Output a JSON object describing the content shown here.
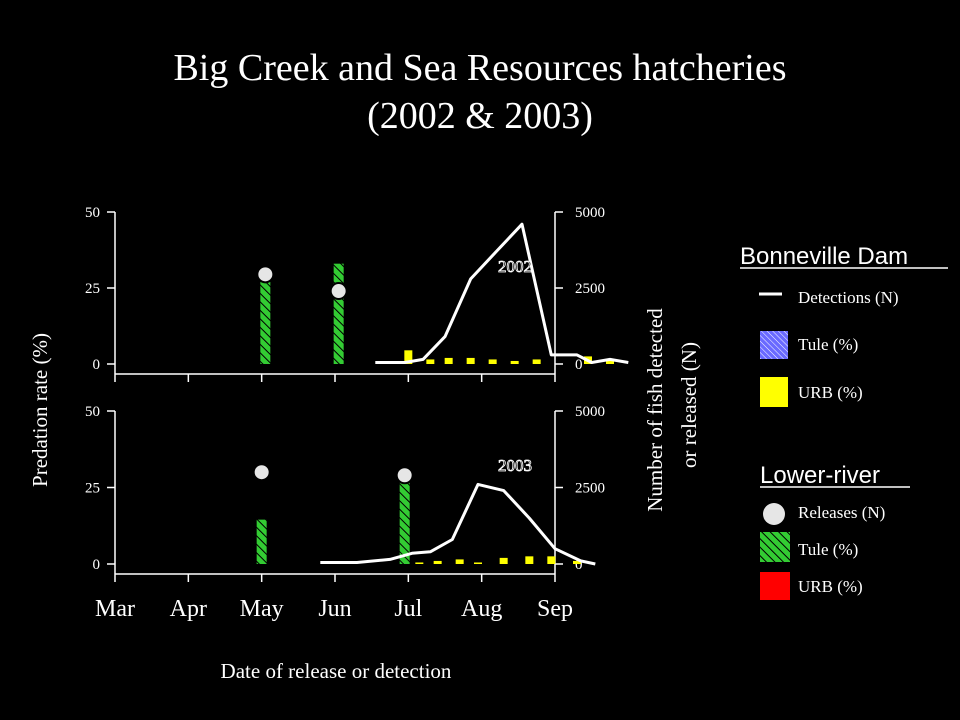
{
  "title_line1": "Big Creek and Sea Resources hatcheries",
  "title_line2": "(2002 & 2003)",
  "colors": {
    "background": "#000000",
    "line": "#ffffff",
    "tule_bonneville": "#6a6aff",
    "urb": "#ffff00",
    "tule_lower": "#33cc33",
    "urb_lower": "#ff0000",
    "release_marker": "#e6e6e6"
  },
  "chart_data": {
    "type": "bar",
    "xlabel": "Date of release or detection",
    "ylabel_left": "Predation rate (%)",
    "ylabel_right_line1": "Number of fish detected",
    "ylabel_right_line2": "or released (N)",
    "x_months": [
      "Mar",
      "Apr",
      "May",
      "Jun",
      "Jul",
      "Aug",
      "Sep"
    ],
    "xlim": [
      0,
      6
    ],
    "ylim_left": [
      0,
      50
    ],
    "ylim_right": [
      0,
      5000
    ],
    "yticks_left": [
      "0",
      "25",
      "50"
    ],
    "yticks_right": [
      "0",
      "2500",
      "5000"
    ],
    "panels": [
      {
        "year_label": "2002",
        "tule_lower_bars": [
          {
            "x": 2.05,
            "value": 27
          },
          {
            "x": 3.05,
            "value": 33
          }
        ],
        "urb_bonneville_bars": [
          {
            "x": 4.0,
            "value": 4.5
          },
          {
            "x": 4.3,
            "value": 1.5
          },
          {
            "x": 4.55,
            "value": 2
          },
          {
            "x": 4.85,
            "value": 2
          },
          {
            "x": 5.15,
            "value": 1.5
          },
          {
            "x": 5.45,
            "value": 1
          },
          {
            "x": 5.75,
            "value": 1.5
          },
          {
            "x": 6.45,
            "value": 2.5
          },
          {
            "x": 6.75,
            "value": 1
          }
        ],
        "releases": [
          {
            "x": 2.05,
            "n": 2950
          },
          {
            "x": 3.05,
            "n": 2400
          }
        ],
        "detections": [
          [
            3.55,
            50
          ],
          [
            3.95,
            50
          ],
          [
            4.2,
            150
          ],
          [
            4.5,
            900
          ],
          [
            4.85,
            2800
          ],
          [
            5.2,
            3700
          ],
          [
            5.55,
            4600
          ],
          [
            5.95,
            300
          ],
          [
            6.3,
            300
          ],
          [
            6.5,
            50
          ],
          [
            6.75,
            150
          ],
          [
            7.0,
            50
          ]
        ]
      },
      {
        "year_label": "2003",
        "tule_lower_bars": [
          {
            "x": 2.0,
            "value": 14.5
          },
          {
            "x": 3.95,
            "value": 27
          }
        ],
        "urb_bonneville_bars": [
          {
            "x": 4.15,
            "value": 0.5
          },
          {
            "x": 4.4,
            "value": 1
          },
          {
            "x": 4.7,
            "value": 1.5
          },
          {
            "x": 4.95,
            "value": 0.5
          },
          {
            "x": 5.3,
            "value": 2
          },
          {
            "x": 5.65,
            "value": 2.5
          },
          {
            "x": 5.95,
            "value": 2.5
          },
          {
            "x": 6.3,
            "value": 1
          }
        ],
        "releases": [
          {
            "x": 2.0,
            "n": 3000
          },
          {
            "x": 3.95,
            "n": 2900
          }
        ],
        "detections": [
          [
            2.8,
            50
          ],
          [
            3.3,
            50
          ],
          [
            3.75,
            150
          ],
          [
            4.05,
            350
          ],
          [
            4.3,
            400
          ],
          [
            4.6,
            800
          ],
          [
            4.95,
            2600
          ],
          [
            5.3,
            2400
          ],
          [
            5.65,
            1500
          ],
          [
            6.0,
            500
          ],
          [
            6.35,
            100
          ],
          [
            6.55,
            0
          ]
        ]
      }
    ]
  },
  "legend": {
    "bonneville_heading": "Bonneville Dam",
    "detections_label": "Detections (N)",
    "tule_label": "Tule (%)",
    "urb_label": "URB (%)",
    "lower_heading": "Lower-river",
    "releases_label": "Releases (N)",
    "tule_lower_label": "Tule (%)",
    "urb_lower_label": "URB (%)"
  }
}
